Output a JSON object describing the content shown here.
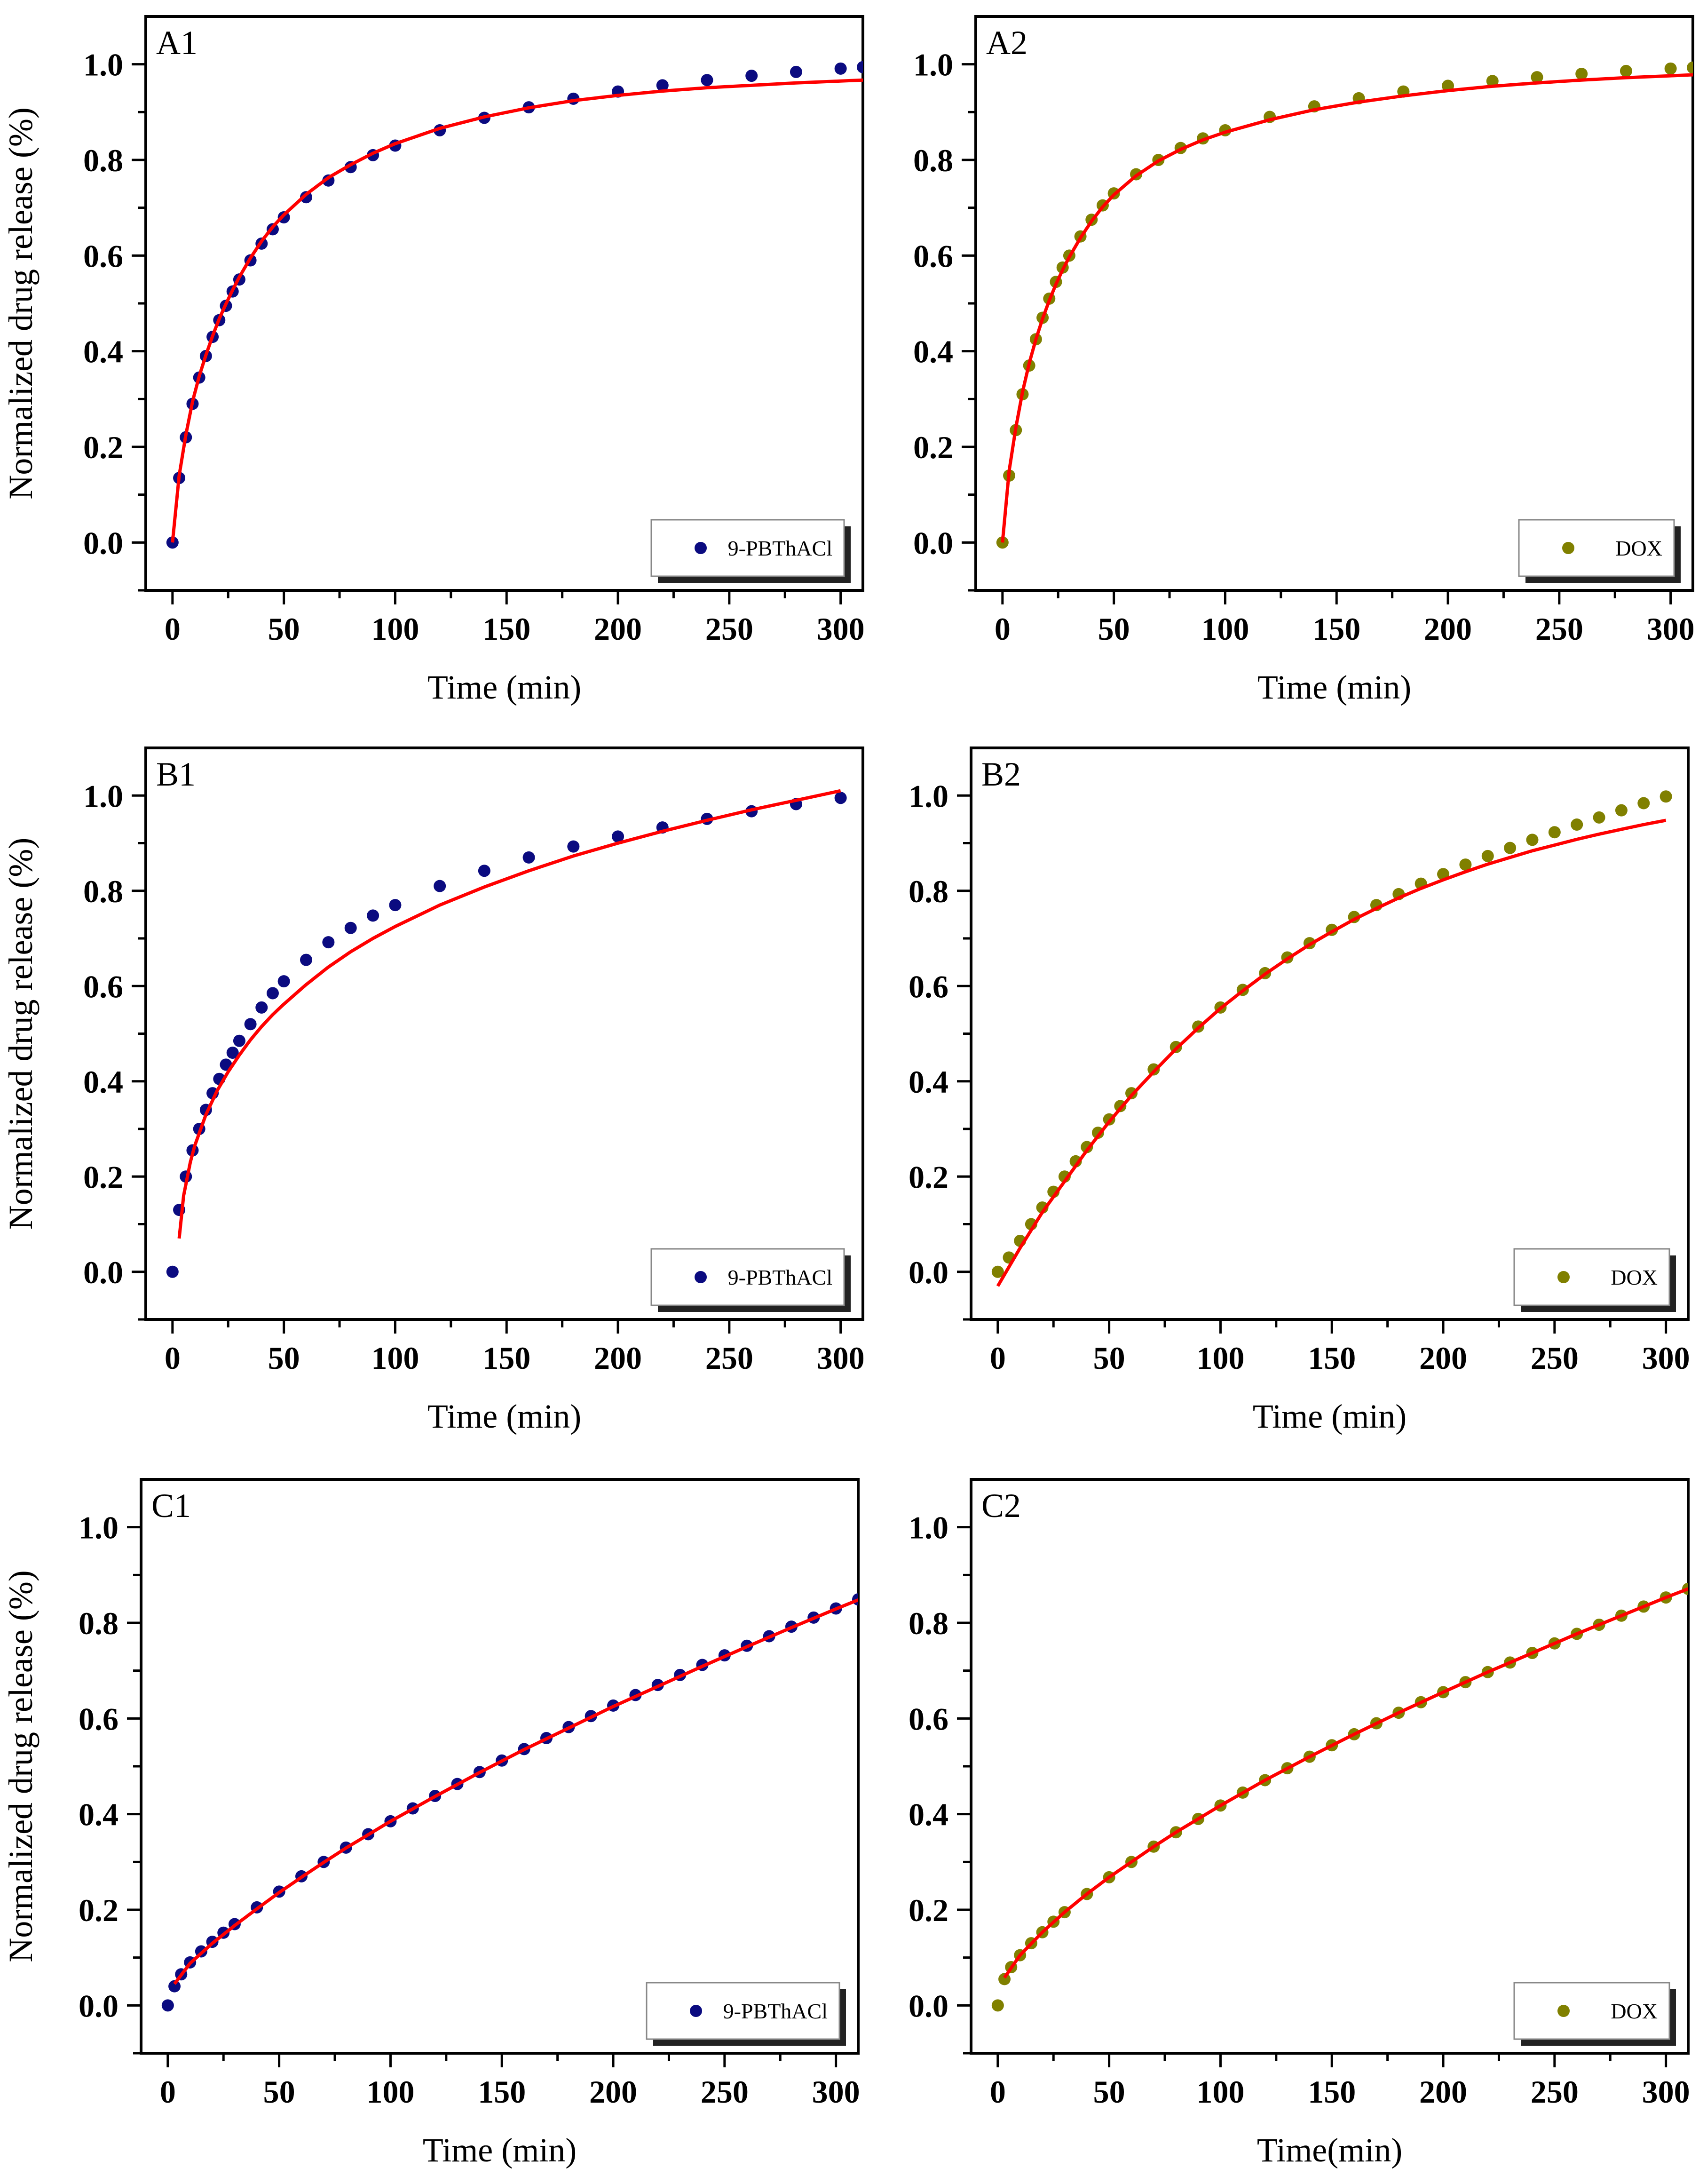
{
  "figure": {
    "ylabel": "Normalized drug release (%)"
  },
  "chart_data": [
    {
      "id": "A1",
      "type": "scatter",
      "panel_label": "A1",
      "xlabel": "Time (min)",
      "ylabel": "Normalized drug release (%)",
      "xlim": [
        -12,
        310
      ],
      "ylim": [
        -0.1,
        1.1
      ],
      "xticks": [
        "0",
        "50",
        "100",
        "150",
        "200",
        "250",
        "300"
      ],
      "yticks": [
        "0.0",
        "0.2",
        "0.4",
        "0.6",
        "0.8",
        "1.0"
      ],
      "legend": {
        "label": "9-PBThACl",
        "position": "bottom-right"
      },
      "series": [
        {
          "name": "9-PBThACl",
          "kind": "data",
          "color": "#0b0b80",
          "x": [
            0,
            3,
            6,
            9,
            12,
            15,
            18,
            21,
            24,
            27,
            30,
            35,
            40,
            45,
            50,
            60,
            70,
            80,
            90,
            100,
            120,
            140,
            160,
            180,
            200,
            220,
            240,
            260,
            280,
            300,
            310
          ],
          "y": [
            0.0,
            0.135,
            0.22,
            0.29,
            0.345,
            0.39,
            0.43,
            0.465,
            0.495,
            0.525,
            0.55,
            0.59,
            0.625,
            0.655,
            0.68,
            0.722,
            0.757,
            0.785,
            0.81,
            0.83,
            0.862,
            0.888,
            0.91,
            0.928,
            0.943,
            0.956,
            0.967,
            0.976,
            0.984,
            0.991,
            0.994
          ]
        },
        {
          "name": "fit",
          "kind": "fit",
          "color": "#ff0000",
          "x": [
            0,
            3,
            6,
            9,
            12,
            15,
            18,
            21,
            24,
            27,
            30,
            35,
            40,
            45,
            50,
            60,
            70,
            80,
            90,
            100,
            120,
            140,
            160,
            180,
            200,
            220,
            240,
            260,
            280,
            300,
            310
          ],
          "y": [
            0.0,
            0.14,
            0.225,
            0.295,
            0.348,
            0.392,
            0.432,
            0.468,
            0.499,
            0.528,
            0.555,
            0.595,
            0.63,
            0.66,
            0.685,
            0.728,
            0.763,
            0.79,
            0.814,
            0.834,
            0.866,
            0.89,
            0.909,
            0.924,
            0.935,
            0.944,
            0.951,
            0.956,
            0.961,
            0.965,
            0.967
          ]
        }
      ]
    },
    {
      "id": "A2",
      "type": "scatter",
      "panel_label": "A2",
      "xlabel": "Time (min)",
      "ylabel": "",
      "xlim": [
        -12,
        310
      ],
      "ylim": [
        -0.1,
        1.1
      ],
      "xticks": [
        "0",
        "50",
        "100",
        "150",
        "200",
        "250",
        "300"
      ],
      "yticks": [
        "0.0",
        "0.2",
        "0.4",
        "0.6",
        "0.8",
        "1.0"
      ],
      "legend": {
        "label": "DOX",
        "position": "bottom-right"
      },
      "series": [
        {
          "name": "DOX",
          "kind": "data",
          "color": "#808000",
          "x": [
            0,
            3,
            6,
            9,
            12,
            15,
            18,
            21,
            24,
            27,
            30,
            35,
            40,
            45,
            50,
            60,
            70,
            80,
            90,
            100,
            120,
            140,
            160,
            180,
            200,
            220,
            240,
            260,
            280,
            300,
            310
          ],
          "y": [
            0.0,
            0.14,
            0.235,
            0.31,
            0.37,
            0.425,
            0.47,
            0.51,
            0.545,
            0.575,
            0.6,
            0.64,
            0.675,
            0.705,
            0.73,
            0.77,
            0.8,
            0.825,
            0.845,
            0.862,
            0.89,
            0.912,
            0.929,
            0.943,
            0.955,
            0.965,
            0.973,
            0.98,
            0.986,
            0.991,
            0.993
          ]
        },
        {
          "name": "fit",
          "kind": "fit",
          "color": "#ff0000",
          "x": [
            0,
            3,
            6,
            9,
            12,
            15,
            18,
            21,
            24,
            27,
            30,
            35,
            40,
            45,
            50,
            60,
            70,
            80,
            90,
            100,
            120,
            140,
            160,
            180,
            200,
            220,
            240,
            260,
            280,
            300,
            310
          ],
          "y": [
            0.0,
            0.15,
            0.24,
            0.315,
            0.375,
            0.425,
            0.468,
            0.506,
            0.54,
            0.57,
            0.597,
            0.637,
            0.672,
            0.702,
            0.727,
            0.767,
            0.798,
            0.822,
            0.842,
            0.858,
            0.884,
            0.905,
            0.921,
            0.934,
            0.945,
            0.954,
            0.961,
            0.967,
            0.972,
            0.976,
            0.978
          ]
        }
      ]
    },
    {
      "id": "B1",
      "type": "scatter",
      "panel_label": "B1",
      "xlabel": "Time (min)",
      "ylabel": "Normalized drug release (%)",
      "xlim": [
        -12,
        310
      ],
      "ylim": [
        -0.1,
        1.1
      ],
      "xticks": [
        "0",
        "50",
        "100",
        "150",
        "200",
        "250",
        "300"
      ],
      "yticks": [
        "0.0",
        "0.2",
        "0.4",
        "0.6",
        "0.8",
        "1.0"
      ],
      "legend": {
        "label": "9-PBThACl",
        "position": "bottom-right"
      },
      "series": [
        {
          "name": "9-PBThACl",
          "kind": "data",
          "color": "#0b0b80",
          "x": [
            0,
            3,
            6,
            9,
            12,
            15,
            18,
            21,
            24,
            27,
            30,
            35,
            40,
            45,
            50,
            60,
            70,
            80,
            90,
            100,
            120,
            140,
            160,
            180,
            200,
            220,
            240,
            260,
            280,
            300
          ],
          "y": [
            0.0,
            0.13,
            0.2,
            0.255,
            0.3,
            0.34,
            0.375,
            0.405,
            0.435,
            0.46,
            0.485,
            0.52,
            0.555,
            0.585,
            0.61,
            0.655,
            0.692,
            0.722,
            0.748,
            0.77,
            0.81,
            0.842,
            0.87,
            0.893,
            0.914,
            0.933,
            0.951,
            0.967,
            0.982,
            0.995
          ]
        },
        {
          "name": "fit",
          "kind": "fit",
          "color": "#ff0000",
          "x": [
            3,
            5,
            8,
            10,
            15,
            20,
            25,
            30,
            35,
            40,
            45,
            50,
            60,
            70,
            80,
            90,
            100,
            120,
            140,
            160,
            180,
            200,
            220,
            240,
            260,
            280,
            300
          ],
          "y": [
            0.07,
            0.16,
            0.23,
            0.265,
            0.33,
            0.38,
            0.42,
            0.455,
            0.487,
            0.515,
            0.54,
            0.562,
            0.603,
            0.64,
            0.672,
            0.7,
            0.725,
            0.77,
            0.808,
            0.842,
            0.873,
            0.9,
            0.925,
            0.948,
            0.97,
            0.99,
            1.01
          ]
        }
      ]
    },
    {
      "id": "B2",
      "type": "scatter",
      "panel_label": "B2",
      "xlabel": "Time (min)",
      "ylabel": "",
      "xlim": [
        -12,
        310
      ],
      "ylim": [
        -0.1,
        1.1
      ],
      "xticks": [
        "0",
        "50",
        "100",
        "150",
        "200",
        "250",
        "300"
      ],
      "yticks": [
        "0.0",
        "0.2",
        "0.4",
        "0.6",
        "0.8",
        "1.0"
      ],
      "legend": {
        "label": "DOX",
        "position": "bottom-right"
      },
      "series": [
        {
          "name": "DOX",
          "kind": "data",
          "color": "#808000",
          "x": [
            0,
            5,
            10,
            15,
            20,
            25,
            30,
            35,
            40,
            45,
            50,
            55,
            60,
            70,
            80,
            90,
            100,
            110,
            120,
            130,
            140,
            150,
            160,
            170,
            180,
            190,
            200,
            210,
            220,
            230,
            240,
            250,
            260,
            270,
            280,
            290,
            300
          ],
          "y": [
            0.0,
            0.03,
            0.065,
            0.1,
            0.135,
            0.168,
            0.2,
            0.232,
            0.262,
            0.292,
            0.32,
            0.348,
            0.375,
            0.425,
            0.472,
            0.515,
            0.555,
            0.592,
            0.627,
            0.66,
            0.69,
            0.718,
            0.745,
            0.77,
            0.793,
            0.815,
            0.835,
            0.855,
            0.873,
            0.89,
            0.907,
            0.923,
            0.939,
            0.954,
            0.969,
            0.984,
            0.998
          ]
        },
        {
          "name": "fit",
          "kind": "fit",
          "color": "#ff0000",
          "x": [
            0,
            10,
            20,
            30,
            40,
            50,
            60,
            70,
            80,
            90,
            100,
            110,
            120,
            130,
            140,
            150,
            160,
            170,
            180,
            190,
            200,
            210,
            220,
            230,
            240,
            250,
            260,
            270,
            280,
            290,
            300
          ],
          "y": [
            -0.03,
            0.05,
            0.125,
            0.19,
            0.255,
            0.315,
            0.37,
            0.42,
            0.468,
            0.512,
            0.553,
            0.59,
            0.625,
            0.657,
            0.687,
            0.714,
            0.74,
            0.763,
            0.785,
            0.805,
            0.823,
            0.84,
            0.856,
            0.87,
            0.884,
            0.896,
            0.908,
            0.919,
            0.929,
            0.939,
            0.948
          ]
        }
      ]
    },
    {
      "id": "C1",
      "type": "scatter",
      "panel_label": "C1",
      "xlabel": "Time (min)",
      "ylabel": "Normalized drug release (%)",
      "xlim": [
        -12,
        310
      ],
      "ylim": [
        -0.1,
        1.1
      ],
      "xticks": [
        "0",
        "50",
        "100",
        "150",
        "200",
        "250",
        "300"
      ],
      "yticks": [
        "0.0",
        "0.2",
        "0.4",
        "0.6",
        "0.8",
        "1.0"
      ],
      "legend": {
        "label": "9-PBThACl",
        "position": "bottom-right"
      },
      "series": [
        {
          "name": "9-PBThACl",
          "kind": "data",
          "color": "#0b0b80",
          "x": [
            0,
            3,
            6,
            10,
            15,
            20,
            25,
            30,
            40,
            50,
            60,
            70,
            80,
            90,
            100,
            110,
            120,
            130,
            140,
            150,
            160,
            170,
            180,
            190,
            200,
            210,
            220,
            230,
            240,
            250,
            260,
            270,
            280,
            290,
            300,
            310
          ],
          "y": [
            0.0,
            0.04,
            0.065,
            0.09,
            0.113,
            0.133,
            0.152,
            0.17,
            0.205,
            0.238,
            0.27,
            0.3,
            0.33,
            0.358,
            0.385,
            0.412,
            0.438,
            0.463,
            0.488,
            0.512,
            0.536,
            0.559,
            0.582,
            0.605,
            0.627,
            0.649,
            0.67,
            0.691,
            0.712,
            0.732,
            0.752,
            0.772,
            0.792,
            0.811,
            0.83,
            0.849
          ]
        },
        {
          "name": "fit",
          "kind": "fit",
          "color": "#ff0000",
          "x": [
            3,
            10,
            20,
            30,
            40,
            50,
            60,
            70,
            80,
            90,
            100,
            120,
            140,
            160,
            180,
            200,
            220,
            240,
            260,
            280,
            300,
            310
          ],
          "y": [
            0.045,
            0.088,
            0.13,
            0.167,
            0.202,
            0.236,
            0.268,
            0.299,
            0.329,
            0.357,
            0.385,
            0.437,
            0.487,
            0.535,
            0.58,
            0.625,
            0.667,
            0.709,
            0.75,
            0.79,
            0.829,
            0.848
          ]
        }
      ]
    },
    {
      "id": "C2",
      "type": "scatter",
      "panel_label": "C2",
      "xlabel": "Time(min)",
      "ylabel": "",
      "xlim": [
        -12,
        310
      ],
      "ylim": [
        -0.1,
        1.1
      ],
      "xticks": [
        "0",
        "50",
        "100",
        "150",
        "200",
        "250",
        "300"
      ],
      "yticks": [
        "0.0",
        "0.2",
        "0.4",
        "0.6",
        "0.8",
        "1.0"
      ],
      "legend": {
        "label": "DOX",
        "position": "bottom-right"
      },
      "series": [
        {
          "name": "DOX",
          "kind": "data",
          "color": "#808000",
          "x": [
            0,
            3,
            6,
            10,
            15,
            20,
            25,
            30,
            40,
            50,
            60,
            70,
            80,
            90,
            100,
            110,
            120,
            130,
            140,
            150,
            160,
            170,
            180,
            190,
            200,
            210,
            220,
            230,
            240,
            250,
            260,
            270,
            280,
            290,
            300,
            310
          ],
          "y": [
            0.0,
            0.055,
            0.08,
            0.105,
            0.13,
            0.153,
            0.175,
            0.195,
            0.233,
            0.268,
            0.3,
            0.332,
            0.362,
            0.39,
            0.418,
            0.445,
            0.471,
            0.496,
            0.52,
            0.544,
            0.567,
            0.59,
            0.612,
            0.634,
            0.655,
            0.676,
            0.697,
            0.717,
            0.737,
            0.757,
            0.777,
            0.796,
            0.815,
            0.834,
            0.853,
            0.871
          ]
        },
        {
          "name": "fit",
          "kind": "fit",
          "color": "#ff0000",
          "x": [
            3,
            10,
            20,
            30,
            40,
            50,
            60,
            70,
            80,
            90,
            100,
            120,
            140,
            160,
            180,
            200,
            220,
            240,
            260,
            280,
            300,
            310
          ],
          "y": [
            0.058,
            0.105,
            0.153,
            0.195,
            0.233,
            0.268,
            0.3,
            0.332,
            0.362,
            0.39,
            0.418,
            0.471,
            0.52,
            0.567,
            0.612,
            0.655,
            0.697,
            0.737,
            0.777,
            0.815,
            0.853,
            0.871
          ]
        }
      ]
    }
  ]
}
